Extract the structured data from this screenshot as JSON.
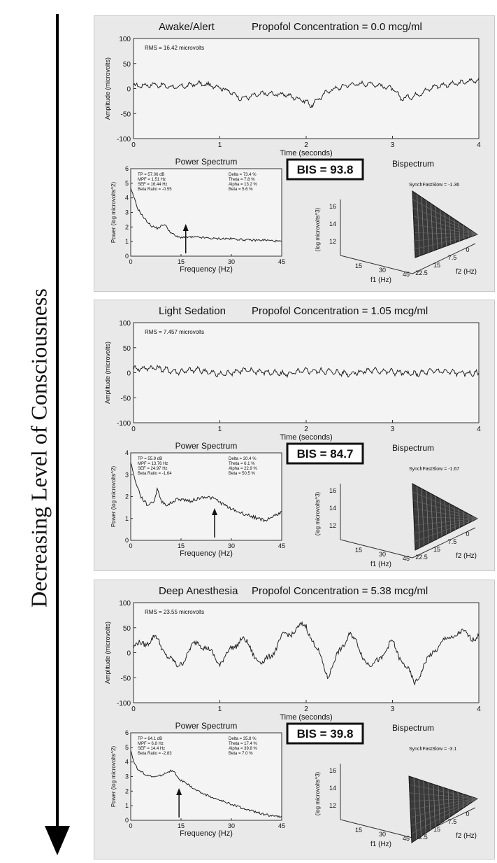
{
  "side_label": "Decreasing Level of Consciousness",
  "panels": [
    {
      "state": "Awake/Alert",
      "concentration": "Propofol Concentration = 0.0 mcg/ml",
      "rms": "RMS = 16.42 microvolts",
      "bis": "BIS = 93.8",
      "synch": "SynchFastSlow = -1.36",
      "stats_left": [
        "TP = 57.06 dB",
        "MPF = 1.51 Hz",
        "SEF = 16.44 Hz",
        "Beta Ratio = -0.55"
      ],
      "stats_right": [
        "Delta = 73.4 %",
        "Theta = 7.8 %",
        "Alpha = 13.2 %",
        "Beta = 5.6 %"
      ]
    },
    {
      "state": "Light Sedation",
      "concentration": "Propofol Concentration = 1.05 mcg/ml",
      "rms": "RMS = 7.457 microvolts",
      "bis": "BIS = 84.7",
      "synch": "SynchFastSlow = -1.67",
      "stats_left": [
        "TP = 55.9 dB",
        "MPF = 13.76 Hz",
        "SEF = 24.97 Hz",
        "Beta Ratio = -1.64"
      ],
      "stats_right": [
        "Delta = 20.4 %",
        "Theta = 6.1 %",
        "Alpha = 22.9 %",
        "Beta = 50.5 %"
      ]
    },
    {
      "state": "Deep Anesthesia",
      "concentration": "Propofol Concentration = 5.38 mcg/ml",
      "rms": "RMS = 23.55 microvolts",
      "bis": "BIS = 39.8",
      "synch": "SynchFastSlow = -3.1",
      "stats_left": [
        "TP = 64.1 dB",
        "MPF = 6.8 Hz",
        "SEF = 14.4 Hz",
        "Beta Ratio = -2.83"
      ],
      "stats_right": [
        "Delta = 35.8 %",
        "Theta = 17.4 %",
        "Alpha = 39.8 %",
        "Beta = 7.0 %"
      ]
    }
  ],
  "labels": {
    "power_title": "Power Spectrum",
    "bispectrum_title": "Bispectrum",
    "time_xlabel": "Time (seconds)",
    "time_ylabel": "Amplitude (microvolts)",
    "freq_xlabel": "Frequency (Hz)",
    "power_ylabel": "Power (log microvolts^2)",
    "bispec_zlabel": "(log microvolts^3)",
    "f1_label": "f1 (Hz)",
    "f2_label": "f2 (Hz)"
  },
  "chart_data": [
    {
      "panel": "Awake/Alert",
      "type": "line",
      "title": "Awake/Alert",
      "xlabel": "Time (seconds)",
      "ylabel": "Amplitude (microvolts)",
      "xlim": [
        0,
        4
      ],
      "ylim": [
        -100,
        100
      ],
      "xticks": [
        0,
        1,
        2,
        3,
        4
      ],
      "yticks": [
        -100,
        -50,
        0,
        50,
        100
      ],
      "x": [
        0,
        0.25,
        0.5,
        0.75,
        1.0,
        1.1,
        1.25,
        1.5,
        1.75,
        2.0,
        2.05,
        2.25,
        2.5,
        2.75,
        3.0,
        3.1,
        3.25,
        3.5,
        3.75,
        4.0
      ],
      "y": [
        5,
        8,
        2,
        10,
        3,
        -5,
        -20,
        -10,
        -12,
        -25,
        -35,
        -5,
        8,
        10,
        0,
        -20,
        -15,
        5,
        10,
        18
      ]
    },
    {
      "panel": "Awake/Alert",
      "type": "line",
      "title": "Power Spectrum",
      "xlabel": "Frequency (Hz)",
      "ylabel": "Power (log microvolts^2)",
      "xlim": [
        0,
        45
      ],
      "ylim": [
        0,
        6
      ],
      "xticks": [
        0,
        15,
        30,
        45
      ],
      "yticks": [
        0,
        1,
        2,
        3,
        4,
        5,
        6
      ],
      "x": [
        0,
        1,
        2,
        4,
        6,
        8,
        10,
        12,
        14,
        16,
        20,
        25,
        30,
        35,
        40,
        45
      ],
      "y": [
        4.6,
        4.0,
        3.3,
        2.6,
        2.1,
        1.9,
        2.2,
        1.6,
        1.3,
        1.3,
        1.3,
        1.2,
        1.2,
        1.1,
        1.1,
        1.0
      ],
      "annotation_arrow_x": 16.4
    },
    {
      "panel": "Light Sedation",
      "type": "line",
      "title": "Light Sedation",
      "xlabel": "Time (seconds)",
      "ylabel": "Amplitude (microvolts)",
      "xlim": [
        0,
        4
      ],
      "ylim": [
        -100,
        100
      ],
      "xticks": [
        0,
        1,
        2,
        3,
        4
      ],
      "yticks": [
        -100,
        -50,
        0,
        50,
        100
      ],
      "x": [
        0,
        0.25,
        0.5,
        0.75,
        1.0,
        1.25,
        1.5,
        1.75,
        2.0,
        2.25,
        2.5,
        2.75,
        3.0,
        3.25,
        3.5,
        3.75,
        4.0
      ],
      "y": [
        8,
        10,
        2,
        6,
        -4,
        5,
        2,
        -3,
        4,
        3,
        -2,
        5,
        2,
        -3,
        4,
        0,
        -2
      ]
    },
    {
      "panel": "Light Sedation",
      "type": "line",
      "title": "Power Spectrum",
      "xlabel": "Frequency (Hz)",
      "ylabel": "Power (log microvolts^2)",
      "xlim": [
        0,
        45
      ],
      "ylim": [
        0,
        4
      ],
      "xticks": [
        0,
        15,
        30,
        45
      ],
      "yticks": [
        0,
        1,
        2,
        3,
        4
      ],
      "x": [
        0,
        1,
        3,
        5,
        7,
        8,
        9,
        11,
        14,
        18,
        22,
        25,
        28,
        32,
        36,
        40,
        45
      ],
      "y": [
        3.6,
        2.9,
        2.0,
        1.6,
        1.8,
        2.4,
        1.8,
        1.6,
        1.9,
        1.8,
        2.0,
        1.9,
        1.6,
        1.3,
        1.1,
        0.9,
        1.3
      ],
      "annotation_arrow_x": 25
    },
    {
      "panel": "Deep Anesthesia",
      "type": "line",
      "title": "Deep Anesthesia",
      "xlabel": "Time (seconds)",
      "ylabel": "Amplitude (microvolts)",
      "xlim": [
        0,
        4
      ],
      "ylim": [
        -100,
        100
      ],
      "xticks": [
        0,
        1,
        2,
        3,
        4
      ],
      "yticks": [
        -100,
        -50,
        0,
        50,
        100
      ],
      "x": [
        0,
        0.25,
        0.5,
        0.75,
        1.0,
        1.25,
        1.5,
        1.75,
        2.0,
        2.25,
        2.5,
        2.75,
        3.0,
        3.25,
        3.5,
        3.75,
        4.0
      ],
      "y": [
        10,
        30,
        -30,
        25,
        -20,
        30,
        -25,
        35,
        55,
        -45,
        40,
        -30,
        20,
        -60,
        10,
        40,
        30
      ]
    },
    {
      "panel": "Deep Anesthesia",
      "type": "line",
      "title": "Power Spectrum",
      "xlabel": "Frequency (Hz)",
      "ylabel": "Power (log microvolts^2)",
      "xlim": [
        0,
        45
      ],
      "ylim": [
        0,
        6
      ],
      "xticks": [
        0,
        15,
        30,
        45
      ],
      "yticks": [
        0,
        1,
        2,
        3,
        4,
        5,
        6
      ],
      "x": [
        0,
        1,
        2,
        4,
        6,
        8,
        10,
        12,
        13,
        14,
        16,
        20,
        25,
        30,
        35,
        40,
        45
      ],
      "y": [
        4.8,
        4.0,
        3.5,
        3.2,
        3.0,
        3.0,
        3.2,
        3.4,
        3.3,
        2.9,
        2.6,
        2.0,
        1.5,
        1.1,
        0.7,
        0.4,
        0.2
      ],
      "annotation_arrow_x": 14.4
    }
  ]
}
